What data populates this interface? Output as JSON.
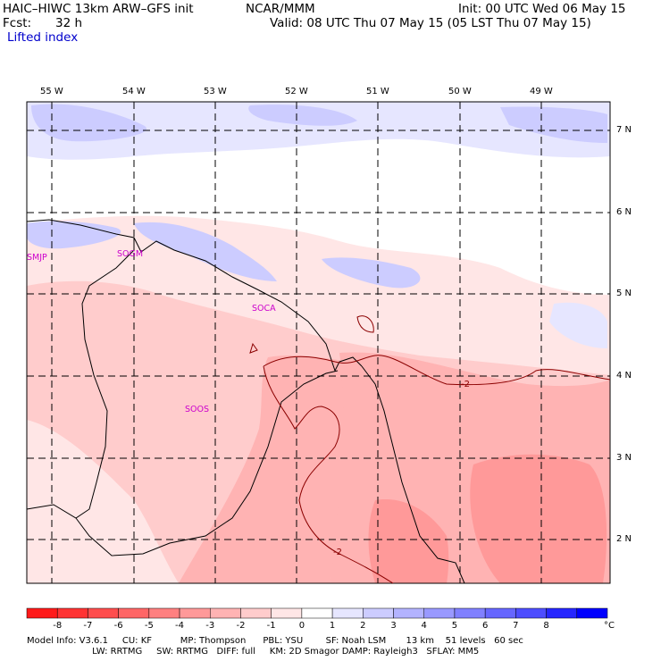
{
  "header": {
    "model": "HAIC–HIWC 13km ARW–GFS init",
    "org": "NCAR/MMM",
    "init": "Init: 00 UTC Wed 06 May 15",
    "fcst_label": "Fcst:",
    "fcst_value": "32 h",
    "valid": "Valid: 08 UTC Thu 07 May 15 (05 LST Thu 07 May 15)",
    "field": "Lifted index"
  },
  "map": {
    "lon_labels": [
      "55 W",
      "54 W",
      "53 W",
      "52 W",
      "51 W",
      "50 W",
      "49 W"
    ],
    "lat_labels": [
      "7 N",
      "6 N",
      "5 N",
      "4 N",
      "3 N",
      "2 N"
    ],
    "stations": [
      "SMJP",
      "SOGM",
      "SOCA",
      "SOOS"
    ],
    "contour_labels": [
      "-2",
      "-2",
      "-2"
    ]
  },
  "colorbar": {
    "ticks": [
      "-8",
      "-7",
      "-6",
      "-5",
      "-4",
      "-3",
      "-2",
      "-1",
      "0",
      "1",
      "2",
      "3",
      "4",
      "5",
      "6",
      "7",
      "8"
    ],
    "unit": "°C",
    "colors": [
      "#ff1a1a",
      "#ff3333",
      "#ff4d4d",
      "#ff6666",
      "#ff8080",
      "#ff9999",
      "#ffb3b3",
      "#ffcccc",
      "#ffe6e6",
      "#ffffff",
      "#e6e6ff",
      "#ccccff",
      "#b3b3ff",
      "#9999ff",
      "#8080ff",
      "#6666ff",
      "#4d4dff",
      "#2626ff",
      "#0000ff"
    ]
  },
  "footer": {
    "line1": "Model Info: V3.6.1     CU: KF          MP: Thompson      PBL: YSU        SF: Noah LSM       13 km    51 levels   60 sec",
    "line2": "                       LW: RRTMG     SW: RRTMG   DIFF: full     KM: 2D Smagor DAMP: Rayleigh3   SFLAY: MM5"
  }
}
